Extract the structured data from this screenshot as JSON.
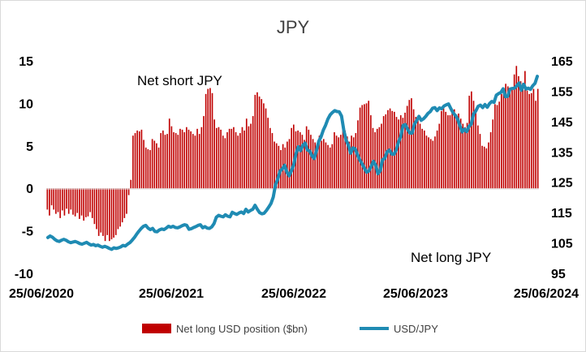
{
  "chart_data": {
    "type": "bar+line",
    "title": "JPY",
    "annotations": [
      "Net short JPY",
      "Net long JPY"
    ],
    "x_tick_labels": [
      "25/06/2020",
      "25/06/2021",
      "25/06/2022",
      "25/06/2023",
      "25/06/2024"
    ],
    "y_left": {
      "ticks": [
        -10,
        -5,
        0,
        5,
        10,
        15
      ],
      "range": [
        -10,
        15
      ]
    },
    "y_right": {
      "ticks": [
        95,
        105,
        115,
        125,
        135,
        145,
        155,
        165
      ],
      "range": [
        95,
        165
      ]
    },
    "grid": false,
    "legend_position": "bottom",
    "colors": {
      "bars": "#c00000",
      "line": "#1f8bb3"
    },
    "series": [
      {
        "name": "Net long USD position ($bn)",
        "kind": "bar",
        "axis": "left",
        "values": [
          -2.5,
          -3.2,
          -2.0,
          -2.5,
          -3.0,
          -2.8,
          -3.5,
          -2.6,
          -3.2,
          -2.4,
          -3.0,
          -2.5,
          -3.1,
          -3.3,
          -2.9,
          -3.6,
          -3.2,
          -3.8,
          -3.4,
          -3.3,
          -2.8,
          -3.5,
          -4.2,
          -4.8,
          -5.6,
          -5.2,
          -5.6,
          -6.2,
          -5.5,
          -6.2,
          -6.0,
          -5.8,
          -5.5,
          -4.8,
          -4.5,
          -4.0,
          -3.5,
          -3.0,
          -0.8,
          1.0,
          6.2,
          6.5,
          6.8,
          6.7,
          6.9,
          5.7,
          4.8,
          4.6,
          4.5,
          5.8,
          5.6,
          5.3,
          4.8,
          6.5,
          6.8,
          6.3,
          6.4,
          8.2,
          7.3,
          6.6,
          6.5,
          6.3,
          7.0,
          6.9,
          6.6,
          7.2,
          6.9,
          6.7,
          6.4,
          6.2,
          7.0,
          6.4,
          7.2,
          8.5,
          11.1,
          11.7,
          11.8,
          11.2,
          8.1,
          7.1,
          7.2,
          6.9,
          6.2,
          5.9,
          6.6,
          7.0,
          7.0,
          7.2,
          6.6,
          6.2,
          6.5,
          7.2,
          6.8,
          8.2,
          7.3,
          7.6,
          8.5,
          11.0,
          11.3,
          10.8,
          10.5,
          10.0,
          9.4,
          8.3,
          7.1,
          6.5,
          5.5,
          5.3,
          5.0,
          4.5,
          5.2,
          4.8,
          5.5,
          5.8,
          7.1,
          7.5,
          6.7,
          6.8,
          6.6,
          6.3,
          5.7,
          7.3,
          6.9,
          6.3,
          5.8,
          5.4,
          5.2,
          6.2,
          5.6,
          5.8,
          5.4,
          5.1,
          4.8,
          5.2,
          6.6,
          6.2,
          6.0,
          6.3,
          7.0,
          6.8,
          6.1,
          5.5,
          6.2,
          6.0,
          6.5,
          8.0,
          9.5,
          9.8,
          9.9,
          10.0,
          10.3,
          8.6,
          7.1,
          6.6,
          7.0,
          7.2,
          7.6,
          8.5,
          8.7,
          9.2,
          9.4,
          9.1,
          9.0,
          8.4,
          8.1,
          8.6,
          8.3,
          8.9,
          9.7,
          10.4,
          10.6,
          9.3,
          8.4,
          8.2,
          7.6,
          7.0,
          6.8,
          6.2,
          6.0,
          5.8,
          5.6,
          6.1,
          6.8,
          7.6,
          9.1,
          9.4,
          9.0,
          8.6,
          8.6,
          9.0,
          9.3,
          8.7,
          8.8,
          8.2,
          7.6,
          7.2,
          7.7,
          10.9,
          11.4,
          10.3,
          9.1,
          7.4,
          6.4,
          5.0,
          4.9,
          4.7,
          5.4,
          6.6,
          8.1,
          9.9,
          9.8,
          10.2,
          11.1,
          11.4,
          12.3,
          12.0,
          11.4,
          11.7,
          13.4,
          14.4,
          13.2,
          12.6,
          12.4,
          13.8,
          11.5,
          11.1,
          11.2,
          11.7,
          10.3,
          11.7
        ]
      },
      {
        "name": "USD/JPY",
        "kind": "line",
        "axis": "right",
        "values": [
          106.8,
          107.3,
          106.9,
          106.2,
          105.7,
          105.5,
          105.9,
          106.2,
          105.9,
          105.4,
          105.1,
          105.3,
          105.5,
          105.2,
          104.8,
          104.6,
          104.9,
          105.2,
          104.7,
          104.3,
          104.5,
          104.1,
          104.3,
          103.9,
          103.6,
          103.9,
          103.6,
          103.2,
          102.9,
          103.4,
          103.2,
          103.4,
          103.7,
          104.2,
          104.0,
          104.6,
          105.1,
          105.9,
          106.8,
          107.9,
          108.9,
          109.8,
          110.5,
          110.8,
          109.9,
          109.4,
          109.8,
          108.8,
          108.7,
          109.3,
          109.6,
          109.4,
          109.9,
          110.5,
          110.2,
          110.5,
          110.1,
          110.0,
          110.3,
          110.7,
          111.0,
          110.8,
          109.5,
          109.7,
          110.1,
          110.4,
          110.8,
          111.0,
          110.0,
          110.4,
          109.9,
          109.8,
          110.3,
          111.4,
          113.5,
          114.1,
          113.8,
          113.6,
          114.3,
          113.8,
          113.6,
          115.1,
          114.7,
          114.4,
          114.9,
          115.2,
          114.7,
          116.1,
          115.2,
          115.7,
          116.1,
          117.4,
          116.1,
          115.0,
          114.6,
          114.8,
          115.7,
          116.8,
          118.0,
          120.1,
          124.2,
          126.1,
          128.7,
          129.4,
          130.6,
          128.3,
          127.1,
          128.8,
          130.8,
          134.4,
          136.7,
          135.4,
          137.2,
          137.9,
          135.6,
          135.3,
          133.7,
          132.8,
          135.5,
          138.5,
          140.0,
          142.2,
          143.8,
          145.8,
          147.2,
          148.0,
          148.6,
          148.3,
          148.2,
          146.8,
          142.1,
          138.9,
          137.2,
          134.6,
          136.3,
          136.0,
          134.1,
          132.4,
          131.1,
          129.7,
          128.3,
          128.7,
          130.2,
          131.9,
          130.6,
          127.8,
          128.8,
          132.4,
          132.9,
          135.0,
          135.6,
          134.3,
          134.2,
          135.6,
          138.2,
          140.0,
          143.7,
          144.0,
          142.5,
          141.2,
          141.2,
          144.1,
          145.3,
          146.7,
          145.4,
          145.9,
          146.7,
          147.7,
          148.3,
          149.4,
          149.6,
          148.6,
          149.5,
          149.2,
          150.1,
          150.5,
          150.8,
          149.3,
          147.9,
          147.0,
          145.8,
          143.6,
          141.6,
          142.5,
          141.7,
          143.4,
          144.2,
          147.5,
          148.5,
          150.0,
          150.4,
          149.6,
          150.6,
          149.7,
          150.9,
          151.6,
          151.3,
          153.7,
          154.2,
          154.6,
          155.8,
          153.2,
          153.3,
          155.7,
          155.9,
          156.0,
          156.8,
          157.7,
          155.3,
          157.3,
          155.7,
          156.0,
          155.6,
          156.8,
          157.6,
          159.9
        ]
      }
    ]
  }
}
